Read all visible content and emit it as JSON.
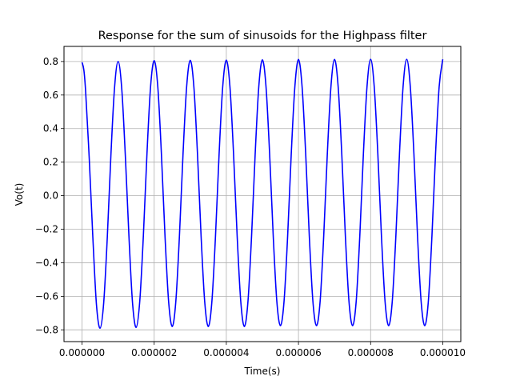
{
  "chart_data": {
    "type": "line",
    "title": "Response for the sum of sinusoids for the Highpass filter",
    "xlabel": "Time(s)",
    "ylabel": "Vo(t)",
    "xlim": [
      -5e-07,
      1.05e-05
    ],
    "ylim": [
      -0.87,
      0.89
    ],
    "grid": true,
    "x_ticks": [
      0,
      2e-06,
      4e-06,
      6e-06,
      8e-06,
      1e-05
    ],
    "x_tick_labels": [
      "0.000000",
      "0.000002",
      "0.000004",
      "0.000006",
      "0.000008",
      "0.000010"
    ],
    "y_ticks": [
      -0.8,
      -0.6,
      -0.4,
      -0.2,
      0.0,
      0.2,
      0.4,
      0.6,
      0.8
    ],
    "y_tick_labels": [
      "−0.8",
      "−0.6",
      "−0.4",
      "−0.2",
      "0.0",
      "0.2",
      "0.4",
      "0.6",
      "0.8"
    ],
    "series": [
      {
        "color": "#0000ff",
        "x": [
          0,
          5e-08,
          1e-07,
          2e-07,
          3e-07,
          4e-07,
          5e-07,
          6e-07,
          7e-07,
          8e-07,
          9e-07,
          1e-06,
          1.1e-06,
          1.2e-06,
          1.3e-06,
          1.4e-06,
          1.5e-06,
          1.6e-06,
          1.7e-06,
          1.8e-06,
          1.9e-06,
          2e-06,
          2.1e-06,
          2.2e-06,
          2.3e-06,
          2.4e-06,
          2.5e-06,
          2.6e-06,
          2.7e-06,
          2.8e-06,
          2.9e-06,
          3e-06,
          3.1e-06,
          3.2e-06,
          3.3e-06,
          3.4e-06,
          3.5e-06,
          3.6e-06,
          3.7e-06,
          3.8e-06,
          3.9e-06,
          4e-06,
          4.1e-06,
          4.2e-06,
          4.3e-06,
          4.4e-06,
          4.5e-06,
          4.6e-06,
          4.7e-06,
          4.8e-06,
          4.9e-06,
          5e-06,
          5.1e-06,
          5.2e-06,
          5.3e-06,
          5.4e-06,
          5.5e-06,
          5.6e-06,
          5.7e-06,
          5.8e-06,
          5.9e-06,
          6e-06,
          6.1e-06,
          6.2e-06,
          6.3e-06,
          6.4e-06,
          6.5e-06,
          6.6e-06,
          6.7e-06,
          6.8e-06,
          6.9e-06,
          7e-06,
          7.1e-06,
          7.2e-06,
          7.3e-06,
          7.4e-06,
          7.5e-06,
          7.6e-06,
          7.7e-06,
          7.8e-06,
          7.9e-06,
          8e-06,
          8.1e-06,
          8.2e-06,
          8.3e-06,
          8.4e-06,
          8.5e-06,
          8.6e-06,
          8.7e-06,
          8.8e-06,
          8.9e-06,
          9e-06,
          9.1e-06,
          9.2e-06,
          9.3e-06,
          9.4e-06,
          9.5e-06,
          9.6e-06,
          9.7e-06,
          9.8e-06,
          9.9e-06,
          1e-05
        ],
        "y": [
          0.795,
          0.75,
          0.62,
          0.22,
          -0.25,
          -0.65,
          -0.79,
          -0.64,
          -0.25,
          0.24,
          0.64,
          0.8,
          0.64,
          0.24,
          -0.24,
          -0.64,
          -0.785,
          -0.63,
          -0.24,
          0.25,
          0.65,
          0.805,
          0.65,
          0.25,
          -0.24,
          -0.63,
          -0.78,
          -0.63,
          -0.24,
          0.25,
          0.65,
          0.807,
          0.65,
          0.25,
          -0.24,
          -0.63,
          -0.78,
          -0.63,
          -0.24,
          0.25,
          0.65,
          0.808,
          0.65,
          0.25,
          -0.24,
          -0.63,
          -0.78,
          -0.63,
          -0.24,
          0.25,
          0.65,
          0.81,
          0.65,
          0.25,
          -0.24,
          -0.63,
          -0.775,
          -0.63,
          -0.24,
          0.25,
          0.65,
          0.812,
          0.65,
          0.25,
          -0.24,
          -0.63,
          -0.775,
          -0.63,
          -0.24,
          0.25,
          0.65,
          0.812,
          0.65,
          0.25,
          -0.24,
          -0.63,
          -0.775,
          -0.63,
          -0.24,
          0.25,
          0.65,
          0.813,
          0.65,
          0.25,
          -0.24,
          -0.63,
          -0.775,
          -0.63,
          -0.24,
          0.25,
          0.65,
          0.813,
          0.65,
          0.25,
          -0.24,
          -0.63,
          -0.775,
          -0.63,
          -0.24,
          0.25,
          0.65,
          0.813
        ]
      }
    ]
  }
}
